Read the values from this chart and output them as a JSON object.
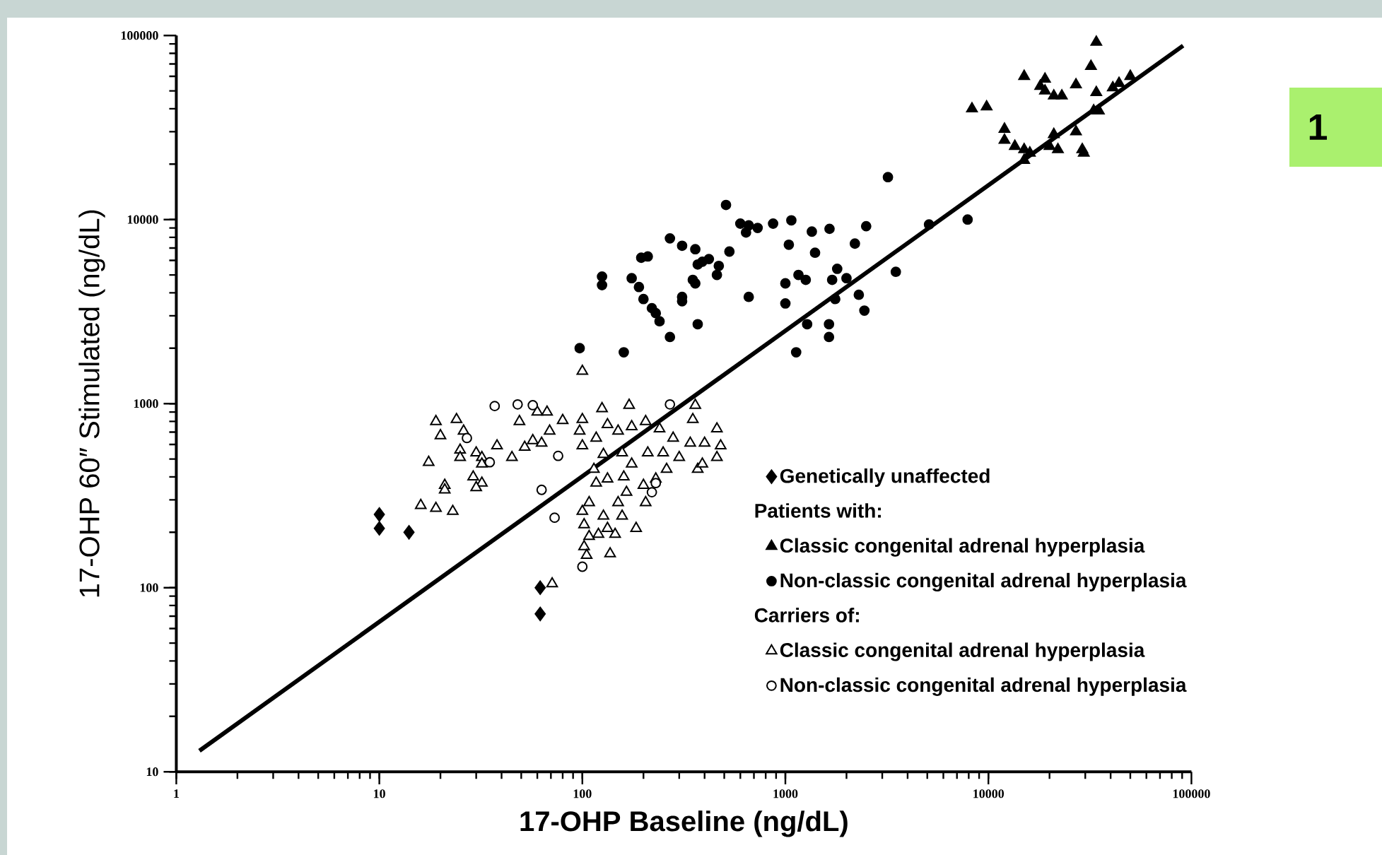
{
  "chart_data": {
    "type": "scatter",
    "xlabel": "17-OHP Baseline (ng/dL)",
    "ylabel": "17-OHP 60″ Stimulated (ng/dL)",
    "log": "xy",
    "legend": "bottom right",
    "xlim": [
      1,
      100000
    ],
    "ylim": [
      10,
      100000
    ],
    "xticks": [
      1,
      10,
      100,
      1000,
      10000,
      100000
    ],
    "yticks": [
      10,
      100,
      1000,
      10000,
      100000
    ],
    "annotations": [
      "Patients with:",
      "Carriers of:",
      "1"
    ],
    "series": [
      {
        "name": "Genetically unaffected",
        "color": "#000000",
        "marker": "diamond",
        "x": [
          10,
          10,
          14,
          62,
          62
        ],
        "values": [
          250,
          210,
          200,
          100,
          72
        ]
      },
      {
        "name": "Classic congenital adrenal hyperplasia",
        "color": "#000000",
        "marker": "triangle",
        "x": [
          34000,
          32000,
          15000,
          19000,
          18000,
          19000,
          21000,
          23000,
          27000,
          34000,
          41000,
          50000,
          8300,
          9800,
          12000,
          12000,
          13500,
          15000,
          16000,
          20000,
          21000,
          22000,
          27000,
          33000,
          35000,
          44000,
          15000,
          29000,
          29500
        ],
        "values": [
          92000,
          68000,
          60000,
          58000,
          53000,
          50000,
          47000,
          47000,
          54000,
          49000,
          52000,
          60000,
          40000,
          41000,
          31000,
          27000,
          25000,
          24000,
          23000,
          25000,
          29000,
          24000,
          30000,
          39000,
          39000,
          55000,
          21000,
          24000,
          23000
        ]
      },
      {
        "name": "Non-classic congenital adrenal hyperplasia",
        "color": "#000000",
        "marker": "circle",
        "x": [
          97,
          160,
          270,
          370,
          240,
          230,
          220,
          200,
          190,
          175,
          125,
          125,
          195,
          210,
          270,
          310,
          360,
          370,
          390,
          420,
          470,
          460,
          350,
          360,
          310,
          310,
          510,
          530,
          600,
          640,
          660,
          730,
          870,
          1070,
          1040,
          1350,
          1650,
          1400,
          2500,
          2200,
          1800,
          1160,
          1260,
          1000,
          660,
          1000,
          1700,
          2000,
          1760,
          2300,
          2450,
          1280,
          1640,
          1640,
          1130,
          3200,
          3500,
          7900,
          5100
        ],
        "values": [
          2000,
          1900,
          2300,
          2700,
          2800,
          3100,
          3300,
          3700,
          4300,
          4800,
          4900,
          4400,
          6200,
          6300,
          7900,
          7200,
          6900,
          5700,
          5900,
          6100,
          5600,
          5000,
          4700,
          4500,
          3800,
          3600,
          12000,
          6700,
          9500,
          8500,
          9300,
          9000,
          9500,
          9900,
          7300,
          8600,
          8900,
          6600,
          9200,
          7400,
          5400,
          5000,
          4700,
          4500,
          3800,
          3500,
          4700,
          4800,
          3700,
          3900,
          3200,
          2700,
          2700,
          2300,
          1900,
          17000,
          5200,
          10000,
          9400
        ]
      },
      {
        "name": "Classic congenital adrenal hyperplasia",
        "color": "#ffffff",
        "marker": "triangle",
        "x": [
          19,
          24,
          20,
          26,
          17.5,
          25,
          25,
          30,
          32,
          32,
          29,
          32,
          30,
          21,
          21,
          16,
          19,
          23,
          38,
          49,
          45,
          52,
          57,
          63,
          69,
          80,
          60,
          67,
          125,
          170,
          360,
          350,
          100,
          97,
          100,
          117,
          133,
          150,
          175,
          205,
          240,
          280,
          340,
          400,
          460,
          480,
          460,
          370,
          300,
          260,
          230,
          200,
          205,
          165,
          150,
          157,
          184,
          145,
          127,
          108,
          100,
          102,
          108,
          120,
          133,
          102,
          105,
          137,
          114,
          127,
          157,
          175,
          210,
          250,
          390,
          117,
          133,
          160,
          100,
          71
        ],
        "values": [
          800,
          820,
          670,
          710,
          480,
          560,
          510,
          540,
          510,
          470,
          400,
          370,
          350,
          360,
          340,
          280,
          270,
          260,
          590,
          800,
          510,
          580,
          630,
          610,
          710,
          810,
          900,
          900,
          940,
          980,
          980,
          820,
          820,
          710,
          590,
          650,
          770,
          710,
          750,
          800,
          730,
          650,
          610,
          610,
          730,
          590,
          510,
          440,
          510,
          440,
          390,
          360,
          290,
          330,
          290,
          245,
          210,
          195,
          245,
          290,
          260,
          220,
          190,
          195,
          210,
          167,
          150,
          153,
          440,
          530,
          540,
          470,
          540,
          540,
          470,
          370,
          390,
          400,
          1500,
          105
        ]
      },
      {
        "name": "Non-classic congenital adrenal hyperplasia",
        "color": "#ffffff",
        "marker": "circle",
        "x": [
          37,
          48,
          57,
          27,
          76,
          35,
          63,
          73,
          100,
          270,
          220,
          230
        ],
        "values": [
          970,
          990,
          980,
          650,
          520,
          480,
          340,
          240,
          130,
          990,
          330,
          370
        ]
      },
      {
        "type": "line",
        "color": "#000000",
        "marker": "none",
        "x": [
          1.3,
          91000
        ],
        "values": [
          13,
          88000
        ]
      }
    ]
  }
}
